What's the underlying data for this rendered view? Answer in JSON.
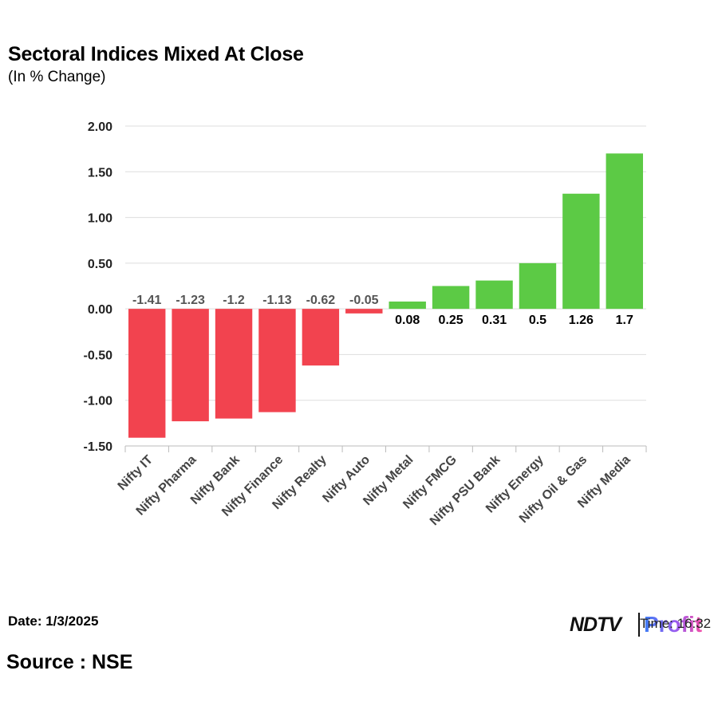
{
  "title": "Sectoral Indices Mixed At Close",
  "subtitle": "(In % Change)",
  "footer": {
    "date": "Date: 1/3/2025",
    "source": "Source : NSE",
    "time_label": "Time: 16:32"
  },
  "brand": {
    "ndtv": "NDTV",
    "profit": "Profit"
  },
  "colors": {
    "positive": "#5cca45",
    "negative": "#f2434f",
    "grid": "#dddddd",
    "label_neg": "#555555",
    "label_pos": "#000000"
  },
  "chart_data": {
    "type": "bar",
    "title": "Sectoral Indices Mixed At Close",
    "subtitle": "(In % Change)",
    "xlabel": "",
    "ylabel": "",
    "ylim": [
      -1.5,
      2.0
    ],
    "yticks": [
      "2.00",
      "1.50",
      "1.00",
      "0.50",
      "0.00",
      "-0.50",
      "-1.00",
      "-1.50"
    ],
    "ytick_values": [
      2.0,
      1.5,
      1.0,
      0.5,
      0.0,
      -0.5,
      -1.0,
      -1.5
    ],
    "grid": true,
    "categories": [
      "Nifty IT",
      "Nifty Pharma",
      "Nifty Bank",
      "Nifty Finance",
      "Nifty Realty",
      "Nifty Auto",
      "Nifty Metal",
      "Nifty FMCG",
      "Nifty PSU Bank",
      "Nifty Energy",
      "Nifty Oil & Gas",
      "Nifty Media"
    ],
    "values": [
      -1.41,
      -1.23,
      -1.2,
      -1.13,
      -0.62,
      -0.05,
      0.08,
      0.25,
      0.31,
      0.5,
      1.26,
      1.7
    ],
    "value_labels": [
      "-1.41",
      "-1.23",
      "-1.2",
      "-1.13",
      "-0.62",
      "-0.05",
      "0.08",
      "0.25",
      "0.31",
      "0.5",
      "1.26",
      "1.7"
    ]
  }
}
